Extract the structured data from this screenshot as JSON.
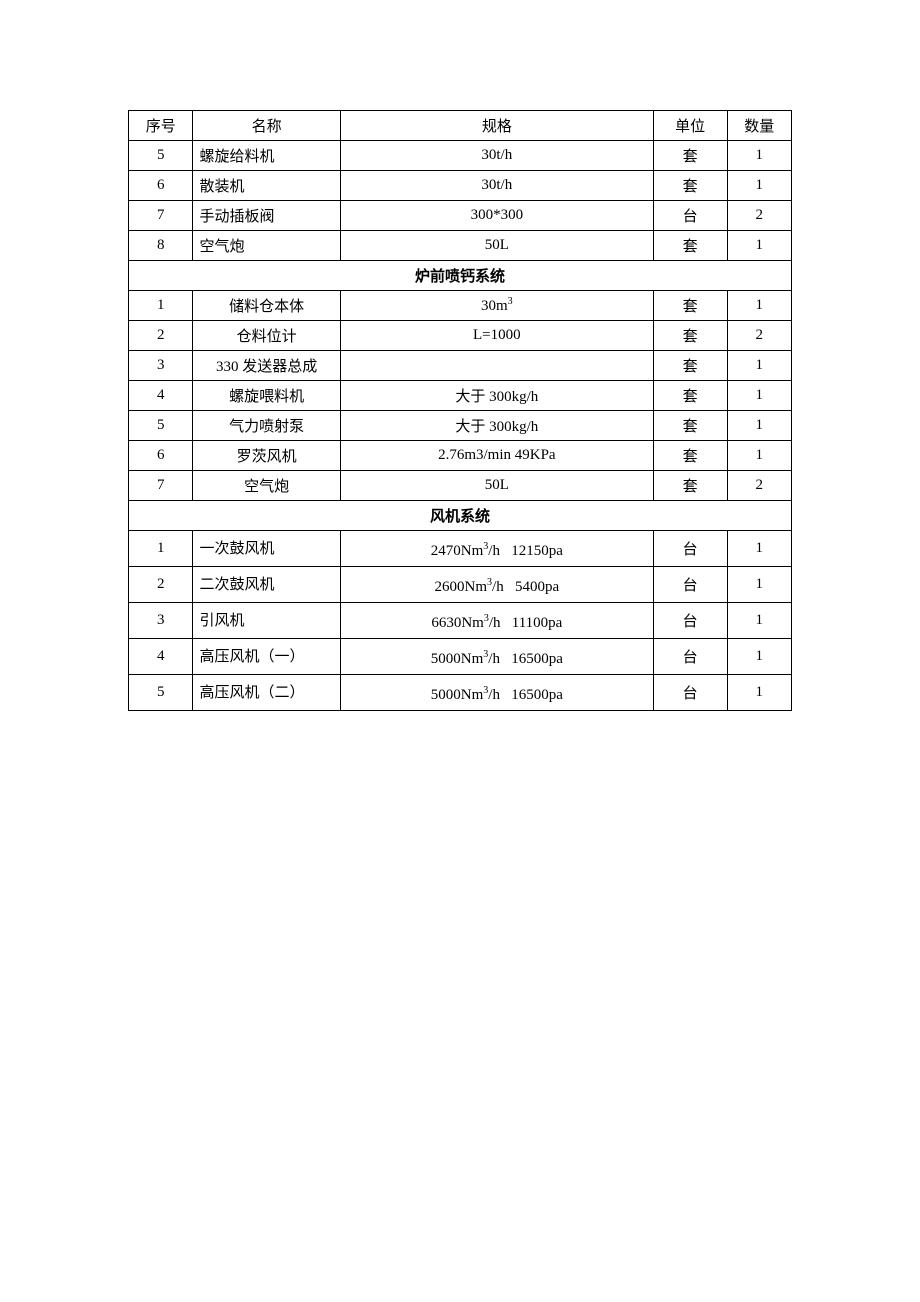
{
  "table": {
    "columns": {
      "seq": "序号",
      "name": "名称",
      "spec": "规格",
      "unit": "单位",
      "qty": "数量"
    },
    "border_color": "#000000",
    "background_color": "#ffffff",
    "text_color": "#000000",
    "font_size": 15,
    "col_widths": {
      "seq": 56,
      "name": 128,
      "spec": 272,
      "unit": 64,
      "qty": 56
    },
    "groups": [
      {
        "rows": [
          {
            "seq": "5",
            "name": "螺旋给料机",
            "name_align": "left",
            "spec": "30t/h",
            "unit": "套",
            "qty": "1"
          },
          {
            "seq": "6",
            "name": "散装机",
            "name_align": "left",
            "spec": "30t/h",
            "unit": "套",
            "qty": "1"
          },
          {
            "seq": "7",
            "name": "手动插板阀",
            "name_align": "left",
            "spec": "300*300",
            "unit": "台",
            "qty": "2"
          },
          {
            "seq": "8",
            "name": "空气炮",
            "name_align": "left",
            "spec": "50L",
            "unit": "套",
            "qty": "1"
          }
        ]
      },
      {
        "title": "炉前喷钙系统",
        "rows": [
          {
            "seq": "1",
            "name": "储料仓本体",
            "name_align": "center",
            "spec_html": "30m<sup>3</sup>",
            "unit": "套",
            "qty": "1"
          },
          {
            "seq": "2",
            "name": "仓料位计",
            "name_align": "center",
            "spec": "L=1000",
            "unit": "套",
            "qty": "2"
          },
          {
            "seq": "3",
            "name": "330 发送器总成",
            "name_align": "center",
            "spec": "",
            "unit": "套",
            "qty": "1"
          },
          {
            "seq": "4",
            "name": "螺旋喂料机",
            "name_align": "center",
            "spec": "大于 300kg/h",
            "unit": "套",
            "qty": "1"
          },
          {
            "seq": "5",
            "name": "气力喷射泵",
            "name_align": "center",
            "spec": "大于 300kg/h",
            "unit": "套",
            "qty": "1"
          },
          {
            "seq": "6",
            "name": "罗茨风机",
            "name_align": "center",
            "spec": "2.76m3/min 49KPa",
            "unit": "套",
            "qty": "1"
          },
          {
            "seq": "7",
            "name": "空气炮",
            "name_align": "center",
            "spec": "50L",
            "unit": "套",
            "qty": "2"
          }
        ]
      },
      {
        "title": "风机系统",
        "tall": true,
        "rows": [
          {
            "seq": "1",
            "name": "一次鼓风机",
            "name_align": "left",
            "spec_html": "2470Nm<sup>3</sup>/h   12150pa",
            "unit": "台",
            "qty": "1"
          },
          {
            "seq": "2",
            "name": "二次鼓风机",
            "name_align": "left",
            "spec_html": "2600Nm<sup>3</sup>/h   5400pa",
            "unit": "台",
            "qty": "1"
          },
          {
            "seq": "3",
            "name": "引风机",
            "name_align": "left",
            "spec_html": "6630Nm<sup>3</sup>/h   11100pa",
            "unit": "台",
            "qty": "1"
          },
          {
            "seq": "4",
            "name": "高压风机（一）",
            "name_align": "left",
            "spec_html": "5000Nm<sup>3</sup>/h   16500pa",
            "unit": "台",
            "qty": "1"
          },
          {
            "seq": "5",
            "name": "高压风机（二）",
            "name_align": "left",
            "spec_html": "5000Nm<sup>3</sup>/h   16500pa",
            "unit": "台",
            "qty": "1"
          }
        ]
      }
    ]
  }
}
